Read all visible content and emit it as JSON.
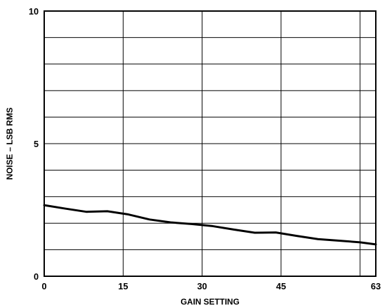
{
  "chart_data": {
    "type": "line",
    "xlabel": "GAIN SETTING",
    "ylabel": "NOISE – LSB RMS",
    "xlim": [
      0,
      63
    ],
    "ylim": [
      0,
      10
    ],
    "x_ticks": [
      {
        "value": 0,
        "label": "0"
      },
      {
        "value": 15,
        "label": "15"
      },
      {
        "value": 30,
        "label": "30"
      },
      {
        "value": 45,
        "label": "45"
      },
      {
        "value": 63,
        "label": "63"
      }
    ],
    "y_ticks": [
      {
        "value": 0,
        "label": "0"
      },
      {
        "value": 5,
        "label": "5"
      },
      {
        "value": 10,
        "label": "10"
      }
    ],
    "x_grid": [
      0,
      15,
      30,
      45,
      60,
      63
    ],
    "y_grid": [
      0,
      1,
      2,
      3,
      4,
      5,
      6,
      7,
      8,
      9,
      10
    ],
    "grid": true,
    "series": [
      {
        "x": [
          0,
          4,
          8,
          12,
          16,
          20,
          24,
          28,
          32,
          36,
          40,
          44,
          48,
          52,
          56,
          60,
          63
        ],
        "y": [
          2.68,
          2.55,
          2.43,
          2.45,
          2.33,
          2.14,
          2.03,
          1.97,
          1.89,
          1.76,
          1.64,
          1.65,
          1.52,
          1.4,
          1.34,
          1.28,
          1.2
        ]
      }
    ]
  }
}
